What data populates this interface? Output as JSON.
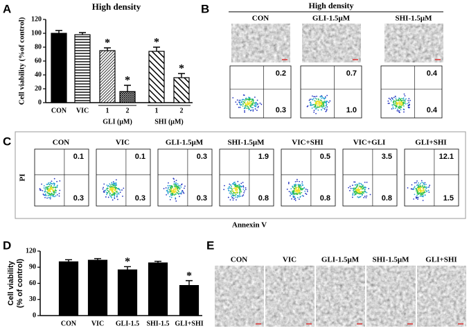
{
  "panel_labels": [
    "A",
    "B",
    "C",
    "D",
    "E"
  ],
  "chart_data": [
    {
      "type": "bar",
      "title": "High density",
      "ylabel": "Cell viability (%of control)",
      "categories": [
        "CON",
        "VIC",
        "1",
        "2",
        "1",
        "2"
      ],
      "groups": [
        "GLI (μM)",
        "SHI (μM)"
      ],
      "values": [
        100,
        98,
        75,
        16,
        74,
        36
      ],
      "errors": [
        4,
        3,
        4,
        9,
        6,
        6
      ],
      "significance": [
        null,
        null,
        "*",
        "*",
        "*",
        "*"
      ],
      "patterns": [
        "solid",
        "horizontal",
        "dense-diagonal",
        "crosshatch",
        "wide-diagonal",
        "wide-diagonal"
      ],
      "color": "#000000",
      "ylim": [
        0,
        120
      ],
      "yticks": [
        0,
        20,
        40,
        60,
        80,
        100,
        120
      ]
    },
    {
      "type": "bar",
      "ylabel_lines": [
        "Cell viability",
        "(% of control)"
      ],
      "categories": [
        "CON",
        "VIC",
        "GLI-1.5",
        "SHI-1.5",
        "GLI+SHI"
      ],
      "values": [
        100,
        103,
        85,
        98,
        56
      ],
      "errors": [
        4,
        3,
        6,
        3,
        9
      ],
      "significance": [
        null,
        null,
        "*",
        null,
        "*"
      ],
      "color": "#000000",
      "ylim": [
        0,
        120
      ],
      "yticks": [
        0,
        30,
        60,
        90,
        120
      ]
    }
  ],
  "panel_b": {
    "title": "High density",
    "conditions": [
      {
        "label": "CON",
        "upper_right": 0.2,
        "lower_right": 0.3
      },
      {
        "label": "GLI-1.5μM",
        "upper_right": 0.7,
        "lower_right": {
          "value": 1,
          "label": "1.0"
        }
      },
      {
        "label": "SHI-1.5μM",
        "upper_right": 0.4,
        "lower_right": 0.4
      }
    ]
  },
  "panel_c": {
    "ylabel": "PI",
    "xlabel": "Annexin V",
    "conditions": [
      {
        "label": "CON",
        "upper_right": 0.1,
        "lower_right": 0.3
      },
      {
        "label": "VIC",
        "upper_right": 0.1,
        "lower_right": 0.3
      },
      {
        "label": "GLI-1.5μM",
        "upper_right": 0.3,
        "lower_right": 0.3
      },
      {
        "label": "SHI-1.5μM",
        "upper_right": 1.9,
        "lower_right": 0.8
      },
      {
        "label": "VIC+SHI",
        "upper_right": 0.5,
        "lower_right": 0.8
      },
      {
        "label": "VIC+GLI",
        "upper_right": 3.5,
        "lower_right": 0.8
      },
      {
        "label": "GLI+SHI",
        "upper_right": 12.1,
        "lower_right": 1.5
      }
    ]
  },
  "panel_e": {
    "conditions": [
      "CON",
      "VIC",
      "GLI-1.5μM",
      "SHI-1.5μM",
      "GLI+SHI"
    ]
  }
}
